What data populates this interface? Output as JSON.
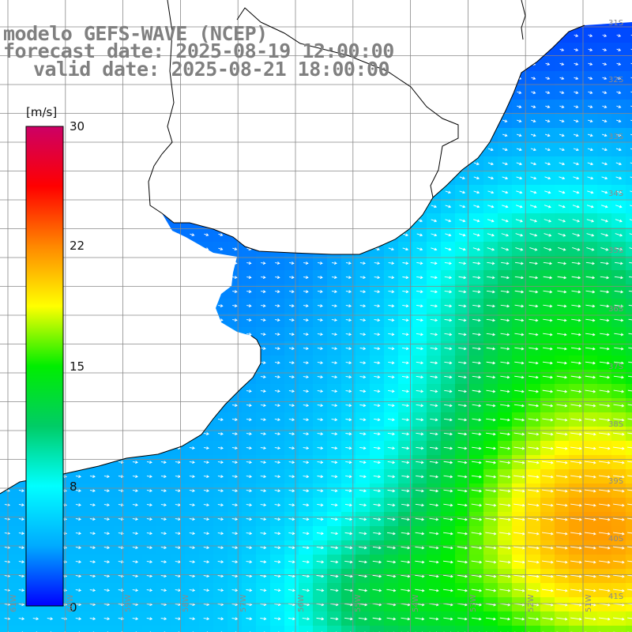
{
  "title": {
    "line1": "modelo GEFS-WAVE (NCEP)",
    "line2": "forecast date: 2025-08-19 12:00:00",
    "line3": "valid date: 2025-08-21 18:00:00"
  },
  "colorbar": {
    "units": "[m/s]",
    "ticks": [
      "30",
      "22",
      "15",
      "8",
      "0"
    ],
    "min": 0,
    "max": 30,
    "colors": [
      "#0000ff",
      "#00aaff",
      "#00ffff",
      "#00cc66",
      "#00ee00",
      "#ffff00",
      "#ff8800",
      "#ff0000",
      "#cc0066"
    ]
  },
  "map": {
    "lat_labels": [
      "31S",
      "32S",
      "33S",
      "34S",
      "35S",
      "36S",
      "37S",
      "38S",
      "39S",
      "40S",
      "41S"
    ],
    "lon_labels": [
      "61W",
      "60W",
      "59W",
      "58W",
      "57W",
      "56W",
      "55W",
      "54W",
      "53W",
      "52W",
      "51W"
    ],
    "field": "wind speed",
    "land_color": "#ffffff",
    "grid_color": "#888888"
  }
}
